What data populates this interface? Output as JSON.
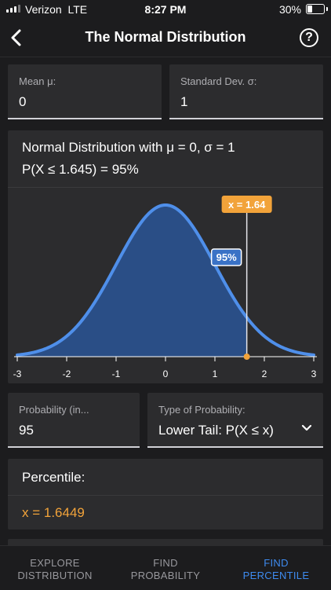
{
  "status_bar": {
    "carrier": "Verizon",
    "network": "LTE",
    "time": "8:27 PM",
    "battery": "30%"
  },
  "nav": {
    "title": "The Normal Distribution",
    "help": "?"
  },
  "inputs": {
    "mean": {
      "label": "Mean μ:",
      "value": "0"
    },
    "std": {
      "label": "Standard Dev. σ:",
      "value": "1"
    },
    "probability": {
      "label": "Probability (in...",
      "value": "95"
    },
    "type": {
      "label": "Type of Probability:",
      "value": "Lower Tail: P(X ≤ x)"
    }
  },
  "chart": {
    "caption_line1": "Normal Distribution with μ = 0, σ = 1",
    "caption_line2": "P(X ≤ 1.645) = 95%",
    "marker_label": "x = 1.64",
    "area_label": "95%",
    "colors": {
      "curve": "#4f8fea",
      "fill": "#2a4e86",
      "marker": "#f2a33a"
    }
  },
  "chart_data": {
    "type": "area",
    "distribution": "normal",
    "mean": 0,
    "sd": 1,
    "xlim": [
      -3,
      3
    ],
    "x_ticks": [
      "-3",
      "-2",
      "-1",
      "0",
      "1",
      "2",
      "3"
    ],
    "shaded_region": {
      "from": -3,
      "to": 1.645
    },
    "marker_x": 1.645,
    "grid": false
  },
  "percentile": {
    "label": "Percentile:",
    "result": "x = 1.6449"
  },
  "tabs": [
    {
      "line1": "EXPLORE",
      "line2": "DISTRIBUTION"
    },
    {
      "line1": "FIND",
      "line2": "PROBABILITY"
    },
    {
      "line1": "FIND",
      "line2": "PERCENTILE"
    }
  ]
}
